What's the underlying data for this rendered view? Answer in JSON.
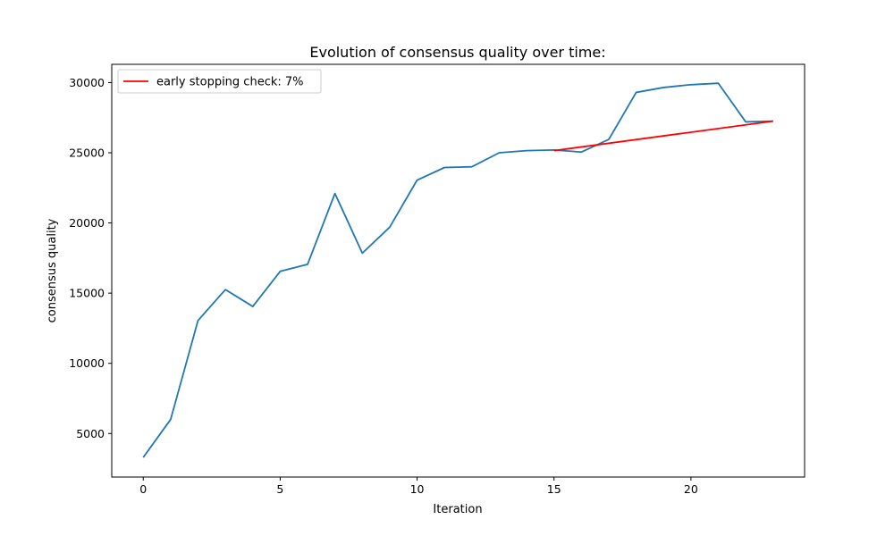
{
  "chart_data": {
    "type": "line",
    "title": "Evolution of consensus quality over time:",
    "xlabel": "Iteration",
    "ylabel": "consensus quality",
    "xlim": [
      -1.15,
      24.15
    ],
    "ylim": [
      1900,
      31300
    ],
    "xticks": [
      0,
      5,
      10,
      15,
      20
    ],
    "xtick_labels": [
      "0",
      "5",
      "10",
      "15",
      "20"
    ],
    "yticks": [
      5000,
      10000,
      15000,
      20000,
      25000,
      30000
    ],
    "ytick_labels": [
      "5000",
      "10000",
      "15000",
      "20000",
      "25000",
      "30000"
    ],
    "grid": false,
    "legend_position": "top-left",
    "series": [
      {
        "color": "#1f77b4",
        "x": [
          0,
          1,
          2,
          3,
          4,
          5,
          6,
          7,
          8,
          9,
          10,
          11,
          12,
          13,
          14,
          15,
          16,
          17,
          18,
          19,
          20,
          21,
          22,
          23
        ],
        "y": [
          3300,
          6000,
          13050,
          15250,
          14050,
          16550,
          17050,
          22100,
          17850,
          19700,
          23050,
          23950,
          24000,
          25000,
          25150,
          25200,
          25050,
          25950,
          29300,
          29650,
          29850,
          29950,
          27200,
          27250
        ]
      },
      {
        "name": "early stopping check: 7%",
        "color": "#ff0000",
        "x": [
          15,
          23
        ],
        "y": [
          25150,
          27250
        ]
      }
    ]
  }
}
